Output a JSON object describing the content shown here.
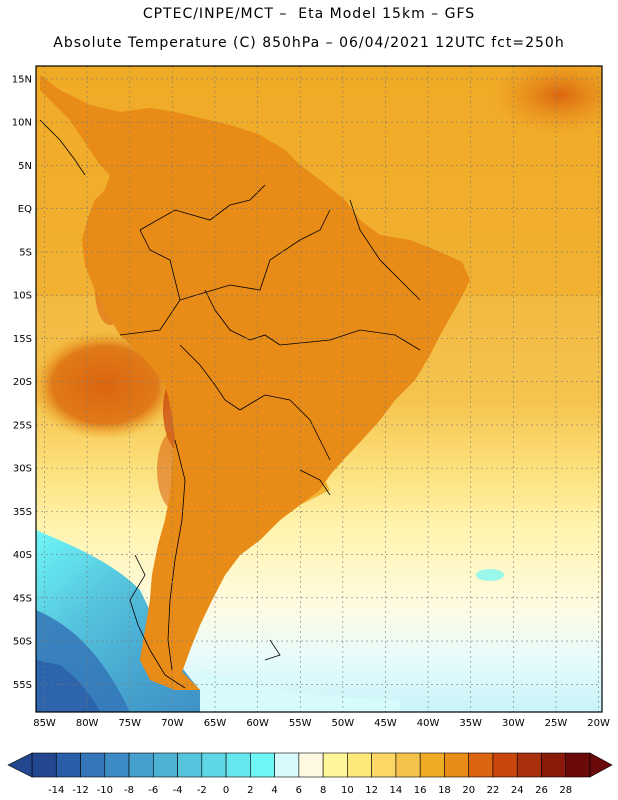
{
  "header": {
    "line1": "CPTEC/INPE/MCT –  Eta Model 15km – GFS",
    "line2": "Absolute Temperature (C) 850hPa – 06/04/2021 12UTC fct=250h"
  },
  "axes": {
    "lat_labels": [
      "15N",
      "10N",
      "5N",
      "EQ",
      "5S",
      "10S",
      "15S",
      "20S",
      "25S",
      "30S",
      "35S",
      "40S",
      "45S",
      "50S",
      "55S"
    ],
    "lon_labels": [
      "85W",
      "80W",
      "75W",
      "70W",
      "65W",
      "60W",
      "55W",
      "50W",
      "45W",
      "40W",
      "35W",
      "30W",
      "25W",
      "20W"
    ]
  },
  "colorbar": {
    "labels": [
      "-14",
      "-12",
      "-10",
      "-8",
      "-6",
      "-4",
      "-2",
      "0",
      "2",
      "4",
      "6",
      "8",
      "10",
      "12",
      "14",
      "16",
      "18",
      "20",
      "22",
      "24",
      "26",
      "28"
    ],
    "colors": [
      "#23478f",
      "#2b5ea8",
      "#3476b9",
      "#3d8bc4",
      "#449fcc",
      "#4cb3d4",
      "#55c4dd",
      "#5ed6e6",
      "#66e6ef",
      "#6ff7f7",
      "#d7fafc",
      "#fff8e1",
      "#fff59a",
      "#ffe87a",
      "#fcd766",
      "#f5c24b",
      "#f0ab26",
      "#e88c17",
      "#db6510",
      "#c9470e",
      "#a9300c",
      "#8a1a0a",
      "#6a0a0a"
    ]
  },
  "palette": {
    "grid": "#7a7a7a",
    "coast": "#000000"
  }
}
